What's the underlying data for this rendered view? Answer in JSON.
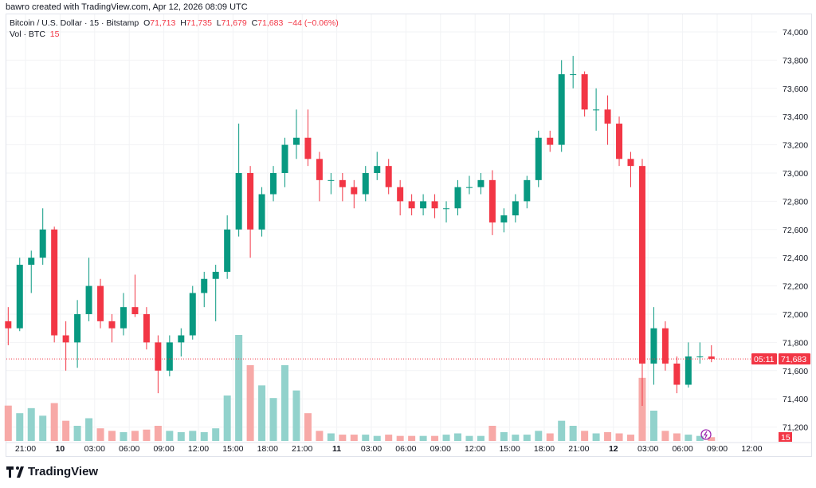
{
  "credit": "bawro created with TradingView.com, Apr 12, 2026 08:09 UTC",
  "legend": {
    "symbol": "Bitcoin / U.S. Dollar · 15 · Bitstamp",
    "o_label": "O",
    "o": "71,713",
    "h_label": "H",
    "h": "71,735",
    "l_label": "L",
    "l": "71,679",
    "c_label": "C",
    "c": "71,683",
    "change": "−44 (−0.06%)",
    "vol_label": "Vol · BTC",
    "vol": "15"
  },
  "price_label": {
    "price": "71,683",
    "countdown": "05:11"
  },
  "volume_label": "15",
  "footer": {
    "brand": "TradingView",
    "logo_icon": "tradingview-logo-icon"
  },
  "colors": {
    "up": "#089981",
    "down": "#f23645",
    "up_volume": "#92d2cc",
    "down_volume": "#f7a9a7",
    "grid": "#f2f3f5",
    "replay_icon": "#9c27b0"
  },
  "chart_data": {
    "type": "candlestick",
    "title": "Bitcoin / U.S. Dollar · 15 · Bitstamp",
    "grid": true,
    "ylim": [
      71100,
      74100
    ],
    "y_ticks": [
      "71,200",
      "71,400",
      "71,600",
      "71,800",
      "72,000",
      "72,200",
      "72,400",
      "72,600",
      "72,800",
      "73,000",
      "73,200",
      "73,400",
      "73,600",
      "73,800",
      "74,000"
    ],
    "x_ticks": [
      "21:00",
      "10",
      "03:00",
      "06:00",
      "09:00",
      "12:00",
      "15:00",
      "18:00",
      "21:00",
      "11",
      "03:00",
      "06:00",
      "09:00",
      "12:00",
      "15:00",
      "18:00",
      "21:00",
      "12",
      "03:00",
      "06:00",
      "09:00",
      "12:00"
    ],
    "x_tick_times": [
      "04-09 21:00",
      "04-10 00:00",
      "04-10 03:00",
      "04-10 06:00",
      "04-10 09:00",
      "04-10 12:00",
      "04-10 15:00",
      "04-10 18:00",
      "04-10 21:00",
      "04-11 00:00",
      "04-11 03:00",
      "04-11 06:00",
      "04-11 09:00",
      "04-11 12:00",
      "04-11 15:00",
      "04-11 18:00",
      "04-11 21:00",
      "04-12 00:00",
      "04-12 03:00",
      "04-12 06:00",
      "04-12 09:00",
      "04-12 12:00"
    ],
    "x_start": "04-09 19:00",
    "x_end": "04-12 13:30",
    "candle_interval_hours": 1,
    "candles": [
      [
        71950,
        72050,
        71780,
        71900,
        140
      ],
      [
        71900,
        72400,
        71880,
        72350,
        110
      ],
      [
        72350,
        72450,
        72150,
        72400,
        130
      ],
      [
        72400,
        72750,
        72350,
        72600,
        100
      ],
      [
        72600,
        72620,
        71800,
        71850,
        150
      ],
      [
        71850,
        71950,
        71600,
        71800,
        80
      ],
      [
        71800,
        72100,
        71620,
        72000,
        60
      ],
      [
        72000,
        72400,
        71950,
        72200,
        90
      ],
      [
        72200,
        72250,
        71900,
        71950,
        50
      ],
      [
        71950,
        72000,
        71800,
        71900,
        40
      ],
      [
        71900,
        72150,
        71850,
        72050,
        35
      ],
      [
        72050,
        72280,
        71980,
        72000,
        40
      ],
      [
        72000,
        72050,
        71750,
        71800,
        45
      ],
      [
        71800,
        71850,
        71440,
        71600,
        60
      ],
      [
        71600,
        71850,
        71560,
        71800,
        40
      ],
      [
        71800,
        71900,
        71700,
        71850,
        35
      ],
      [
        71850,
        72200,
        71820,
        72150,
        40
      ],
      [
        72150,
        72300,
        72050,
        72250,
        35
      ],
      [
        72250,
        72350,
        71950,
        72300,
        50
      ],
      [
        72300,
        72700,
        72250,
        72600,
        180
      ],
      [
        72600,
        73350,
        72550,
        73000,
        420
      ],
      [
        73000,
        73050,
        72400,
        72600,
        300
      ],
      [
        72600,
        72900,
        72550,
        72850,
        220
      ],
      [
        72850,
        73050,
        72800,
        73000,
        170
      ],
      [
        73000,
        73250,
        72900,
        73200,
        300
      ],
      [
        73200,
        73450,
        73100,
        73250,
        200
      ],
      [
        73250,
        73450,
        73050,
        73100,
        110
      ],
      [
        73100,
        73150,
        72800,
        72950,
        40
      ],
      [
        72950,
        73000,
        72850,
        72950,
        30
      ],
      [
        72950,
        73000,
        72800,
        72900,
        25
      ],
      [
        72900,
        72950,
        72750,
        72850,
        25
      ],
      [
        72850,
        73050,
        72800,
        73000,
        25
      ],
      [
        73000,
        73150,
        72950,
        73050,
        20
      ],
      [
        73050,
        73100,
        72850,
        72900,
        25
      ],
      [
        72900,
        72950,
        72700,
        72800,
        20
      ],
      [
        72800,
        72850,
        72700,
        72750,
        20
      ],
      [
        72750,
        72850,
        72700,
        72800,
        20
      ],
      [
        72800,
        72850,
        72680,
        72750,
        20
      ],
      [
        72750,
        72800,
        72650,
        72750,
        25
      ],
      [
        72750,
        72950,
        72700,
        72900,
        30
      ],
      [
        72900,
        72980,
        72850,
        72900,
        20
      ],
      [
        72900,
        73000,
        72850,
        72950,
        20
      ],
      [
        72950,
        73020,
        72560,
        72650,
        60
      ],
      [
        72650,
        72750,
        72580,
        72700,
        35
      ],
      [
        72700,
        72850,
        72650,
        72800,
        25
      ],
      [
        72800,
        72980,
        72750,
        72950,
        25
      ],
      [
        72950,
        73300,
        72900,
        73250,
        40
      ],
      [
        73250,
        73300,
        73150,
        73200,
        30
      ],
      [
        73200,
        73800,
        73150,
        73700,
        80
      ],
      [
        73700,
        73830,
        73600,
        73700,
        60
      ],
      [
        73700,
        73720,
        73400,
        73450,
        40
      ],
      [
        73450,
        73600,
        73300,
        73450,
        30
      ],
      [
        73450,
        73550,
        73200,
        73350,
        35
      ],
      [
        73350,
        73400,
        73050,
        73100,
        30
      ],
      [
        73100,
        73150,
        72900,
        73050,
        25
      ],
      [
        73050,
        73100,
        71350,
        71650,
        250
      ],
      [
        71650,
        72050,
        71500,
        71900,
        120
      ],
      [
        71900,
        71950,
        71600,
        71650,
        40
      ],
      [
        71650,
        71700,
        71440,
        71500,
        30
      ],
      [
        71500,
        71800,
        71480,
        71700,
        25
      ],
      [
        71700,
        71800,
        71650,
        71700,
        20
      ],
      [
        71700,
        71780,
        71660,
        71683,
        15
      ]
    ]
  }
}
